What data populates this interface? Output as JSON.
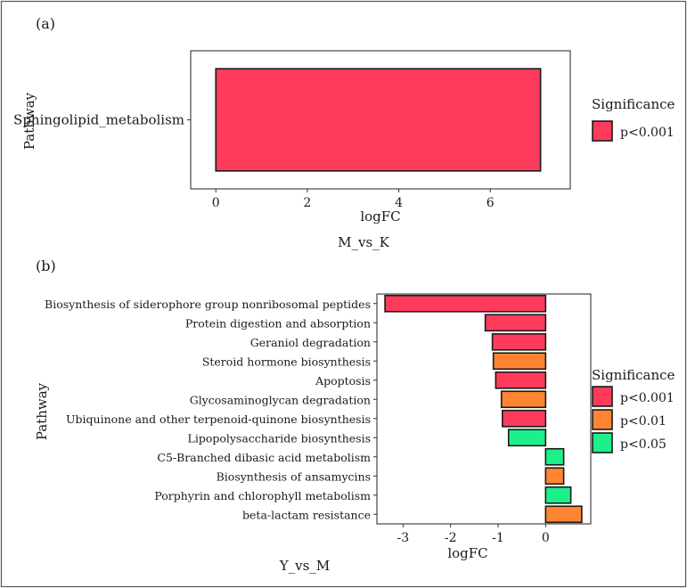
{
  "chart_data": [
    {
      "panel_label": "(a)",
      "type": "bar",
      "orientation": "horizontal",
      "categories": [
        "Sphingolipid_metabolism"
      ],
      "values": [
        7.1
      ],
      "significance": [
        "p<0.001"
      ],
      "xlabel": "logFC",
      "ylabel": "Pathway",
      "xticks": [
        0,
        2,
        4,
        6
      ],
      "xlim": [
        -0.55,
        7.75
      ],
      "caption": "M_vs_K",
      "legend": {
        "title": "Significance",
        "entries": [
          "p<0.001"
        ],
        "position": "right"
      },
      "grid": false
    },
    {
      "panel_label": "(b)",
      "type": "bar",
      "orientation": "horizontal",
      "categories": [
        "Biosynthesis of siderophore group nonribosomal peptides",
        "Protein digestion and absorption",
        "Geraniol degradation",
        "Steroid hormone biosynthesis",
        "Apoptosis",
        "Glycosaminoglycan degradation",
        "Ubiquinone and other terpenoid-quinone biosynthesis",
        "Lipopolysaccharide biosynthesis",
        "C5-Branched dibasic acid metabolism",
        "Biosynthesis of ansamycins",
        "Porphyrin and chlorophyll metabolism",
        "beta-lactam resistance"
      ],
      "values": [
        -3.38,
        -1.27,
        -1.12,
        -1.1,
        -1.05,
        -0.93,
        -0.91,
        -0.78,
        0.38,
        0.38,
        0.53,
        0.76
      ],
      "significance": [
        "p<0.001",
        "p<0.001",
        "p<0.001",
        "p<0.01",
        "p<0.001",
        "p<0.01",
        "p<0.001",
        "p<0.05",
        "p<0.05",
        "p<0.01",
        "p<0.05",
        "p<0.01"
      ],
      "xlabel": "logFC",
      "ylabel": "Pathway",
      "xticks": [
        -3,
        -2,
        -1,
        0
      ],
      "xlim": [
        -3.55,
        0.95
      ],
      "caption": "Y_vs_M",
      "legend": {
        "title": "Significance",
        "entries": [
          "p<0.001",
          "p<0.01",
          "p<0.05"
        ],
        "position": "right"
      },
      "grid": false
    }
  ],
  "colors": {
    "p<0.001": "#ff3b5c",
    "p<0.01": "#ff8533",
    "p<0.05": "#1df08a",
    "frame": "#222222",
    "page_border": "#555555"
  }
}
